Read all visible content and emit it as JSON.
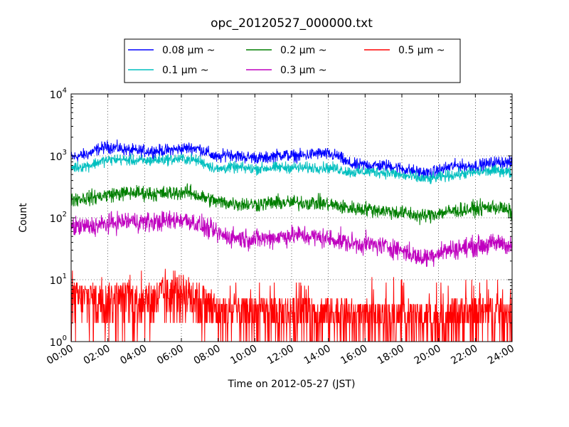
{
  "chart_data": {
    "type": "line",
    "title": "opc_20120527_000000.txt",
    "xlabel": "Time on 2012-05-27 (JST)",
    "ylabel": "Count",
    "y_scale": "log",
    "ylim": [
      1,
      10000
    ],
    "xlim": [
      "00:00",
      "24:00"
    ],
    "x_ticks": [
      "00:00",
      "02:00",
      "04:00",
      "06:00",
      "08:00",
      "10:00",
      "12:00",
      "14:00",
      "16:00",
      "18:00",
      "20:00",
      "22:00",
      "24:00"
    ],
    "y_ticks": [
      {
        "value": 1,
        "base": "10",
        "exp": "0"
      },
      {
        "value": 10,
        "base": "10",
        "exp": "1"
      },
      {
        "value": 100,
        "base": "10",
        "exp": "2"
      },
      {
        "value": 1000,
        "base": "10",
        "exp": "3"
      },
      {
        "value": 10000,
        "base": "10",
        "exp": "4"
      }
    ],
    "grid": true,
    "legend_position": "top, above plot",
    "x": [
      0,
      0.5,
      1,
      1.5,
      2,
      2.5,
      3,
      3.5,
      4,
      4.5,
      5,
      5.5,
      6,
      6.5,
      7,
      7.5,
      8,
      8.5,
      9,
      9.5,
      10,
      10.5,
      11,
      11.5,
      12,
      12.5,
      13,
      13.5,
      14,
      14.5,
      15,
      15.5,
      16,
      16.5,
      17,
      17.5,
      18,
      18.5,
      19,
      19.5,
      20,
      20.5,
      21,
      21.5,
      22,
      22.5,
      23,
      23.5,
      24
    ],
    "series": [
      {
        "name": "0.08 μm ~",
        "color": "#0000ff",
        "values": [
          950,
          1000,
          1100,
          1300,
          1400,
          1350,
          1250,
          1200,
          1200,
          1200,
          1200,
          1250,
          1300,
          1350,
          1300,
          1100,
          900,
          1100,
          1000,
          950,
          950,
          900,
          1000,
          1050,
          1000,
          1000,
          1050,
          1100,
          1050,
          1000,
          780,
          700,
          720,
          700,
          700,
          680,
          620,
          580,
          540,
          520,
          580,
          650,
          700,
          680,
          700,
          720,
          780,
          800,
          750
        ]
      },
      {
        "name": "0.1 μm ~",
        "color": "#00bfbf",
        "values": [
          650,
          670,
          700,
          800,
          850,
          880,
          860,
          840,
          830,
          850,
          870,
          880,
          900,
          880,
          820,
          700,
          600,
          650,
          650,
          630,
          620,
          630,
          640,
          650,
          650,
          640,
          640,
          650,
          640,
          620,
          560,
          540,
          560,
          550,
          540,
          520,
          480,
          460,
          430,
          420,
          450,
          480,
          500,
          520,
          540,
          560,
          570,
          580,
          520
        ]
      },
      {
        "name": "0.2 μm ~",
        "color": "#007f00",
        "values": [
          200,
          205,
          210,
          220,
          235,
          245,
          250,
          255,
          250,
          245,
          245,
          250,
          260,
          255,
          220,
          200,
          180,
          175,
          170,
          165,
          165,
          170,
          175,
          175,
          175,
          175,
          175,
          175,
          165,
          155,
          145,
          140,
          140,
          135,
          130,
          125,
          120,
          115,
          105,
          110,
          120,
          125,
          130,
          135,
          140,
          145,
          150,
          140,
          120
        ]
      },
      {
        "name": "0.3 μm ~",
        "color": "#bf00bf",
        "values": [
          70,
          72,
          72,
          75,
          80,
          85,
          88,
          88,
          85,
          85,
          88,
          90,
          95,
          90,
          75,
          65,
          55,
          50,
          48,
          46,
          45,
          46,
          48,
          50,
          52,
          52,
          50,
          48,
          46,
          44,
          40,
          38,
          38,
          36,
          35,
          33,
          30,
          26,
          22,
          24,
          28,
          30,
          32,
          33,
          35,
          36,
          38,
          40,
          32
        ]
      },
      {
        "name": "0.5 μm ~",
        "color": "#ff0000",
        "values": [
          5,
          5,
          5,
          5,
          5,
          5,
          5,
          5,
          5,
          5,
          6,
          6,
          7,
          6,
          5,
          4,
          3,
          3,
          3,
          3,
          3,
          3,
          3,
          3,
          3,
          3,
          3,
          3,
          3,
          3,
          3,
          2.5,
          2.5,
          2.5,
          2.5,
          2.5,
          2.5,
          2.5,
          2.5,
          2.5,
          2.5,
          2.5,
          3,
          3,
          3,
          3,
          3,
          3,
          3
        ]
      }
    ]
  }
}
